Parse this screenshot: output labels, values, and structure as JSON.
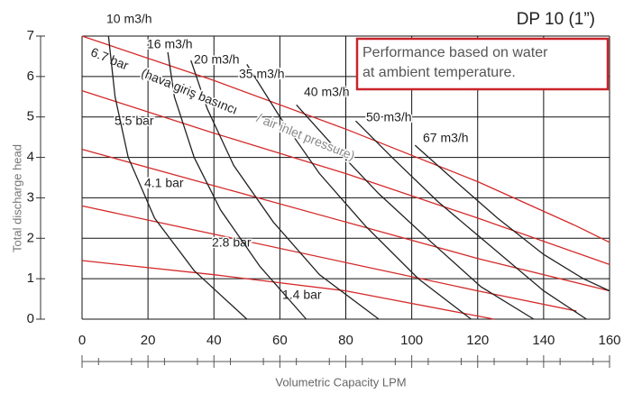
{
  "chart_data": {
    "type": "line",
    "title": "DP 10 (1”)",
    "note": [
      "Performance based on water",
      "at ambient temperature."
    ],
    "annotation": [
      "(hava giriş basıncı",
      "/ air inlet pressure)"
    ],
    "x_label": "Volumetric Capacity LPM",
    "y_label": "Total discharge head",
    "xlim": [
      0,
      160
    ],
    "ylim": [
      0,
      7
    ],
    "xticks": [
      0,
      20,
      40,
      60,
      80,
      100,
      120,
      140,
      160
    ],
    "yticks": [
      0,
      1,
      2,
      3,
      4,
      5,
      6,
      7
    ],
    "grid": true,
    "series": [
      {
        "name": "6.7 bar",
        "color": "#d42a2a",
        "x": [
          0,
          40,
          80,
          120,
          150,
          160
        ],
        "values": [
          7,
          5.9,
          4.7,
          3.4,
          2.3,
          1.9
        ]
      },
      {
        "name": "5.5 bar",
        "color": "#d42a2a",
        "x": [
          0,
          40,
          80,
          120,
          160
        ],
        "values": [
          5.65,
          4.6,
          3.6,
          2.5,
          1.35
        ]
      },
      {
        "name": "4.1 bar",
        "color": "#d42a2a",
        "x": [
          0,
          40,
          80,
          120,
          160
        ],
        "values": [
          4.2,
          3.3,
          2.4,
          1.5,
          0.7
        ]
      },
      {
        "name": "2.8 bar",
        "color": "#d42a2a",
        "x": [
          0,
          40,
          80,
          120,
          150
        ],
        "values": [
          2.8,
          2.1,
          1.4,
          0.7,
          0.2
        ]
      },
      {
        "name": "1.4 bar",
        "color": "#d42a2a",
        "x": [
          0,
          40,
          80,
          125
        ],
        "values": [
          1.45,
          1.1,
          0.7,
          0
        ]
      },
      {
        "name": "10 m3/h",
        "color": "#222222",
        "x": [
          8,
          10,
          14,
          22,
          34,
          50
        ],
        "values": [
          7,
          5.5,
          4,
          2.5,
          1.2,
          0
        ]
      },
      {
        "name": "16 m3/h",
        "color": "#222222",
        "x": [
          26,
          28,
          34,
          42,
          54,
          68
        ],
        "values": [
          6.6,
          5.5,
          4,
          2.7,
          1.3,
          0
        ]
      },
      {
        "name": "20 m3/h",
        "color": "#222222",
        "x": [
          33,
          38,
          46,
          58,
          72,
          90
        ],
        "values": [
          6.4,
          5.2,
          3.8,
          2.4,
          1.1,
          0
        ]
      },
      {
        "name": "35 m3/h",
        "color": "#222222",
        "x": [
          50,
          60,
          72,
          86,
          102,
          118
        ],
        "values": [
          6.3,
          5,
          3.6,
          2.3,
          1,
          0
        ]
      },
      {
        "name": "40 m3/h",
        "color": "#222222",
        "x": [
          65,
          76,
          90,
          106,
          121,
          137
        ],
        "values": [
          5.3,
          4.3,
          3.1,
          1.9,
          0.8,
          0
        ]
      },
      {
        "name": "50 m3/h",
        "color": "#222222",
        "x": [
          83,
          94,
          108,
          124,
          140,
          153
        ],
        "values": [
          4.9,
          4,
          2.9,
          1.8,
          0.7,
          0
        ]
      },
      {
        "name": "67 m3/h",
        "color": "#222222",
        "x": [
          101,
          112,
          126,
          140,
          152,
          160
        ],
        "values": [
          4.3,
          3.5,
          2.5,
          1.6,
          1,
          0.7
        ]
      }
    ]
  }
}
